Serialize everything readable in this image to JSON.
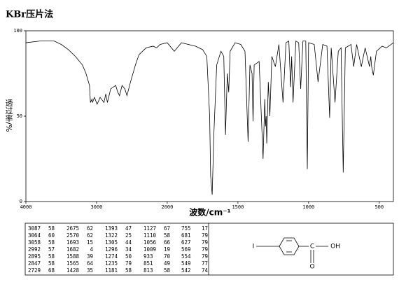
{
  "chart_data": {
    "type": "line",
    "title": "KBr压片法",
    "xlabel": "波数/cm⁻¹",
    "ylabel": "透过率/%",
    "color": "#000000",
    "xlim": [
      4000,
      400
    ],
    "xticks": [
      4000,
      3000,
      2000,
      1500,
      1000,
      500
    ],
    "ylim": [
      0,
      100
    ],
    "yticks": [
      0,
      50,
      100
    ],
    "x": [
      4000,
      3800,
      3600,
      3500,
      3400,
      3300,
      3200,
      3150,
      3100,
      3087,
      3064,
      3058,
      3030,
      2992,
      2950,
      2895,
      2870,
      2847,
      2800,
      2729,
      2700,
      2675,
      2640,
      2600,
      2570,
      2520,
      2450,
      2400,
      2300,
      2200,
      2150,
      2100,
      2000,
      1950,
      1900,
      1800,
      1750,
      1720,
      1700,
      1693,
      1682,
      1670,
      1650,
      1620,
      1600,
      1588,
      1575,
      1565,
      1555,
      1520,
      1480,
      1450,
      1428,
      1415,
      1400,
      1393,
      1385,
      1350,
      1322,
      1310,
      1305,
      1300,
      1296,
      1285,
      1274,
      1260,
      1235,
      1210,
      1181,
      1160,
      1140,
      1127,
      1120,
      1110,
      1090,
      1070,
      1056,
      1040,
      1020,
      1009,
      1000,
      960,
      933,
      900,
      870,
      851,
      840,
      813,
      790,
      770,
      755,
      740,
      700,
      681,
      660,
      627,
      600,
      569,
      560,
      554,
      549,
      542,
      520,
      480,
      450,
      400
    ],
    "values": [
      93,
      94,
      94,
      92,
      89,
      85,
      80,
      75,
      68,
      58,
      60,
      58,
      61,
      57,
      61,
      58,
      63,
      58,
      66,
      68,
      64,
      62,
      68,
      66,
      62,
      70,
      80,
      86,
      90,
      91,
      90,
      92,
      93,
      88,
      93,
      91,
      89,
      85,
      50,
      15,
      4,
      40,
      80,
      88,
      85,
      39,
      75,
      64,
      88,
      93,
      92,
      88,
      35,
      80,
      75,
      47,
      80,
      82,
      25,
      60,
      44,
      50,
      34,
      70,
      50,
      85,
      79,
      92,
      58,
      93,
      94,
      67,
      85,
      58,
      94,
      93,
      66,
      94,
      94,
      19,
      93,
      92,
      70,
      92,
      91,
      49,
      90,
      58,
      88,
      90,
      17,
      90,
      92,
      79,
      92,
      79,
      90,
      79,
      85,
      79,
      77,
      74,
      88,
      91,
      90,
      93
    ]
  },
  "peak_table": {
    "columns": [
      [
        [
          3087,
          58
        ],
        [
          3064,
          60
        ],
        [
          3058,
          58
        ],
        [
          2992,
          57
        ],
        [
          2895,
          58
        ],
        [
          2847,
          58
        ],
        [
          2729,
          68
        ]
      ],
      [
        [
          2675,
          62
        ],
        [
          2570,
          62
        ],
        [
          1693,
          15
        ],
        [
          1682,
          4
        ],
        [
          1588,
          39
        ],
        [
          1565,
          64
        ],
        [
          1428,
          35
        ]
      ],
      [
        [
          1393,
          47
        ],
        [
          1322,
          25
        ],
        [
          1305,
          44
        ],
        [
          1296,
          34
        ],
        [
          1274,
          50
        ],
        [
          1235,
          79
        ],
        [
          1181,
          58
        ]
      ],
      [
        [
          1127,
          67
        ],
        [
          1110,
          58
        ],
        [
          1056,
          66
        ],
        [
          1009,
          19
        ],
        [
          933,
          70
        ],
        [
          851,
          49
        ],
        [
          813,
          58
        ]
      ],
      [
        [
          755,
          17
        ],
        [
          681,
          79
        ],
        [
          627,
          79
        ],
        [
          569,
          79
        ],
        [
          554,
          79
        ],
        [
          549,
          77
        ],
        [
          542,
          74
        ]
      ]
    ]
  },
  "structure": {
    "iodine": "I",
    "carbon": "C",
    "hydroxyl": "OH",
    "oxygen": "O"
  }
}
